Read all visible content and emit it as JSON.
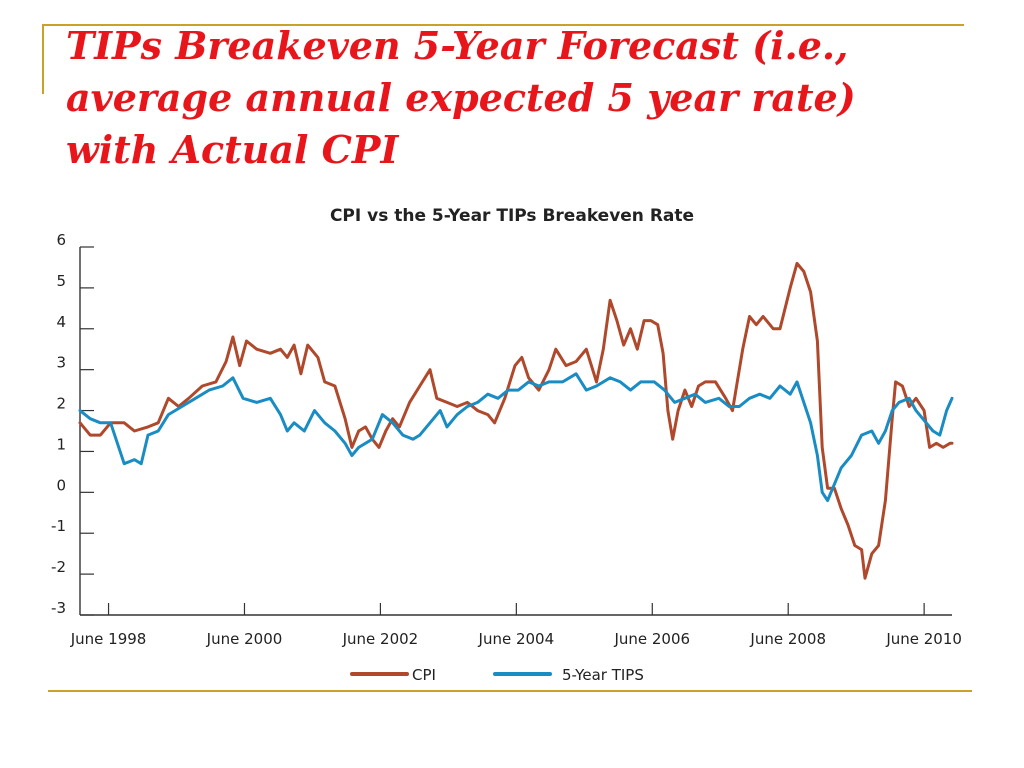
{
  "slide": {
    "title_lines": [
      "TIPs Breakeven 5-Year Forecast (i.e.,",
      "average annual expected 5 year rate)",
      "with Actual CPI"
    ],
    "accent_color": "#c9a227",
    "title_color": "#e8161b"
  },
  "chart_data": {
    "type": "line",
    "title": "CPI vs the 5-Year TIPs Breakeven Rate",
    "xlabel": "",
    "ylabel": "",
    "ylim": [
      -3,
      6
    ],
    "yticks": [
      6,
      5,
      4,
      3,
      2,
      1,
      0,
      -1,
      -2,
      -3
    ],
    "xlim": [
      1998.0,
      2010.83
    ],
    "xticks": [
      {
        "label": "June 1998",
        "x": 1998.42
      },
      {
        "label": "June 2000",
        "x": 2000.42
      },
      {
        "label": "June 2002",
        "x": 2002.42
      },
      {
        "label": "June 2004",
        "x": 2004.42
      },
      {
        "label": "June 2006",
        "x": 2006.42
      },
      {
        "label": "June 2008",
        "x": 2008.42
      },
      {
        "label": "June 2010",
        "x": 2010.42
      }
    ],
    "legend_position": "bottom",
    "grid": false,
    "series": [
      {
        "name": "CPI",
        "color": "#b0492c",
        "points": [
          [
            1998.0,
            1.7
          ],
          [
            1998.15,
            1.4
          ],
          [
            1998.3,
            1.4
          ],
          [
            1998.45,
            1.7
          ],
          [
            1998.65,
            1.7
          ],
          [
            1998.8,
            1.5
          ],
          [
            1999.0,
            1.6
          ],
          [
            1999.15,
            1.7
          ],
          [
            1999.3,
            2.3
          ],
          [
            1999.45,
            2.1
          ],
          [
            1999.6,
            2.3
          ],
          [
            1999.8,
            2.6
          ],
          [
            2000.0,
            2.7
          ],
          [
            2000.15,
            3.2
          ],
          [
            2000.25,
            3.8
          ],
          [
            2000.35,
            3.1
          ],
          [
            2000.45,
            3.7
          ],
          [
            2000.6,
            3.5
          ],
          [
            2000.8,
            3.4
          ],
          [
            2000.95,
            3.5
          ],
          [
            2001.05,
            3.3
          ],
          [
            2001.15,
            3.6
          ],
          [
            2001.25,
            2.9
          ],
          [
            2001.35,
            3.6
          ],
          [
            2001.5,
            3.3
          ],
          [
            2001.6,
            2.7
          ],
          [
            2001.75,
            2.6
          ],
          [
            2001.9,
            1.8
          ],
          [
            2002.0,
            1.1
          ],
          [
            2002.1,
            1.5
          ],
          [
            2002.2,
            1.6
          ],
          [
            2002.3,
            1.3
          ],
          [
            2002.4,
            1.1
          ],
          [
            2002.5,
            1.5
          ],
          [
            2002.6,
            1.8
          ],
          [
            2002.7,
            1.6
          ],
          [
            2002.85,
            2.2
          ],
          [
            2003.0,
            2.6
          ],
          [
            2003.15,
            3.0
          ],
          [
            2003.25,
            2.3
          ],
          [
            2003.4,
            2.2
          ],
          [
            2003.55,
            2.1
          ],
          [
            2003.7,
            2.2
          ],
          [
            2003.85,
            2.0
          ],
          [
            2004.0,
            1.9
          ],
          [
            2004.1,
            1.7
          ],
          [
            2004.25,
            2.3
          ],
          [
            2004.4,
            3.1
          ],
          [
            2004.5,
            3.3
          ],
          [
            2004.6,
            2.8
          ],
          [
            2004.75,
            2.5
          ],
          [
            2004.9,
            3.0
          ],
          [
            2005.0,
            3.5
          ],
          [
            2005.15,
            3.1
          ],
          [
            2005.3,
            3.2
          ],
          [
            2005.45,
            3.5
          ],
          [
            2005.6,
            2.7
          ],
          [
            2005.7,
            3.5
          ],
          [
            2005.8,
            4.7
          ],
          [
            2005.9,
            4.2
          ],
          [
            2006.0,
            3.6
          ],
          [
            2006.1,
            4.0
          ],
          [
            2006.2,
            3.5
          ],
          [
            2006.3,
            4.2
          ],
          [
            2006.4,
            4.2
          ],
          [
            2006.5,
            4.1
          ],
          [
            2006.58,
            3.4
          ],
          [
            2006.65,
            2.0
          ],
          [
            2006.72,
            1.3
          ],
          [
            2006.8,
            2.0
          ],
          [
            2006.9,
            2.5
          ],
          [
            2007.0,
            2.1
          ],
          [
            2007.1,
            2.6
          ],
          [
            2007.2,
            2.7
          ],
          [
            2007.35,
            2.7
          ],
          [
            2007.5,
            2.3
          ],
          [
            2007.6,
            2.0
          ],
          [
            2007.75,
            3.5
          ],
          [
            2007.85,
            4.3
          ],
          [
            2007.95,
            4.1
          ],
          [
            2008.05,
            4.3
          ],
          [
            2008.2,
            4.0
          ],
          [
            2008.3,
            4.0
          ],
          [
            2008.45,
            5.0
          ],
          [
            2008.55,
            5.6
          ],
          [
            2008.65,
            5.4
          ],
          [
            2008.75,
            4.9
          ],
          [
            2008.85,
            3.7
          ],
          [
            2008.92,
            1.1
          ],
          [
            2009.0,
            0.1
          ],
          [
            2009.1,
            0.1
          ],
          [
            2009.2,
            -0.4
          ],
          [
            2009.3,
            -0.8
          ],
          [
            2009.4,
            -1.3
          ],
          [
            2009.5,
            -1.4
          ],
          [
            2009.55,
            -2.1
          ],
          [
            2009.65,
            -1.5
          ],
          [
            2009.75,
            -1.3
          ],
          [
            2009.85,
            -0.2
          ],
          [
            2009.95,
            1.8
          ],
          [
            2010.0,
            2.7
          ],
          [
            2010.1,
            2.6
          ],
          [
            2010.2,
            2.1
          ],
          [
            2010.3,
            2.3
          ],
          [
            2010.42,
            2.0
          ],
          [
            2010.5,
            1.1
          ],
          [
            2010.6,
            1.2
          ],
          [
            2010.7,
            1.1
          ],
          [
            2010.8,
            1.2
          ],
          [
            2010.83,
            1.2
          ]
        ]
      },
      {
        "name": "5-Year TIPS",
        "color": "#1a8cc4",
        "points": [
          [
            1998.0,
            2.0
          ],
          [
            1998.15,
            1.8
          ],
          [
            1998.3,
            1.7
          ],
          [
            1998.45,
            1.7
          ],
          [
            1998.55,
            1.2
          ],
          [
            1998.65,
            0.7
          ],
          [
            1998.8,
            0.8
          ],
          [
            1998.9,
            0.7
          ],
          [
            1999.0,
            1.4
          ],
          [
            1999.15,
            1.5
          ],
          [
            1999.3,
            1.9
          ],
          [
            1999.5,
            2.1
          ],
          [
            1999.7,
            2.3
          ],
          [
            1999.9,
            2.5
          ],
          [
            2000.1,
            2.6
          ],
          [
            2000.25,
            2.8
          ],
          [
            2000.4,
            2.3
          ],
          [
            2000.6,
            2.2
          ],
          [
            2000.8,
            2.3
          ],
          [
            2000.95,
            1.9
          ],
          [
            2001.05,
            1.5
          ],
          [
            2001.15,
            1.7
          ],
          [
            2001.3,
            1.5
          ],
          [
            2001.45,
            2.0
          ],
          [
            2001.6,
            1.7
          ],
          [
            2001.75,
            1.5
          ],
          [
            2001.9,
            1.2
          ],
          [
            2002.0,
            0.9
          ],
          [
            2002.1,
            1.1
          ],
          [
            2002.3,
            1.3
          ],
          [
            2002.45,
            1.9
          ],
          [
            2002.6,
            1.7
          ],
          [
            2002.75,
            1.4
          ],
          [
            2002.9,
            1.3
          ],
          [
            2003.0,
            1.4
          ],
          [
            2003.15,
            1.7
          ],
          [
            2003.3,
            2.0
          ],
          [
            2003.4,
            1.6
          ],
          [
            2003.55,
            1.9
          ],
          [
            2003.7,
            2.1
          ],
          [
            2003.85,
            2.2
          ],
          [
            2004.0,
            2.4
          ],
          [
            2004.15,
            2.3
          ],
          [
            2004.3,
            2.5
          ],
          [
            2004.45,
            2.5
          ],
          [
            2004.6,
            2.7
          ],
          [
            2004.75,
            2.6
          ],
          [
            2004.9,
            2.7
          ],
          [
            2005.1,
            2.7
          ],
          [
            2005.3,
            2.9
          ],
          [
            2005.45,
            2.5
          ],
          [
            2005.6,
            2.6
          ],
          [
            2005.8,
            2.8
          ],
          [
            2005.95,
            2.7
          ],
          [
            2006.1,
            2.5
          ],
          [
            2006.25,
            2.7
          ],
          [
            2006.45,
            2.7
          ],
          [
            2006.6,
            2.5
          ],
          [
            2006.75,
            2.2
          ],
          [
            2006.9,
            2.3
          ],
          [
            2007.05,
            2.4
          ],
          [
            2007.2,
            2.2
          ],
          [
            2007.4,
            2.3
          ],
          [
            2007.55,
            2.1
          ],
          [
            2007.7,
            2.1
          ],
          [
            2007.85,
            2.3
          ],
          [
            2008.0,
            2.4
          ],
          [
            2008.15,
            2.3
          ],
          [
            2008.3,
            2.6
          ],
          [
            2008.45,
            2.4
          ],
          [
            2008.55,
            2.7
          ],
          [
            2008.65,
            2.2
          ],
          [
            2008.75,
            1.7
          ],
          [
            2008.85,
            0.9
          ],
          [
            2008.92,
            0.0
          ],
          [
            2009.0,
            -0.2
          ],
          [
            2009.1,
            0.2
          ],
          [
            2009.2,
            0.6
          ],
          [
            2009.35,
            0.9
          ],
          [
            2009.5,
            1.4
          ],
          [
            2009.65,
            1.5
          ],
          [
            2009.75,
            1.2
          ],
          [
            2009.85,
            1.5
          ],
          [
            2009.95,
            2.0
          ],
          [
            2010.05,
            2.2
          ],
          [
            2010.2,
            2.3
          ],
          [
            2010.3,
            2.0
          ],
          [
            2010.45,
            1.7
          ],
          [
            2010.55,
            1.5
          ],
          [
            2010.65,
            1.4
          ],
          [
            2010.75,
            2.0
          ],
          [
            2010.83,
            2.3
          ]
        ]
      }
    ]
  }
}
